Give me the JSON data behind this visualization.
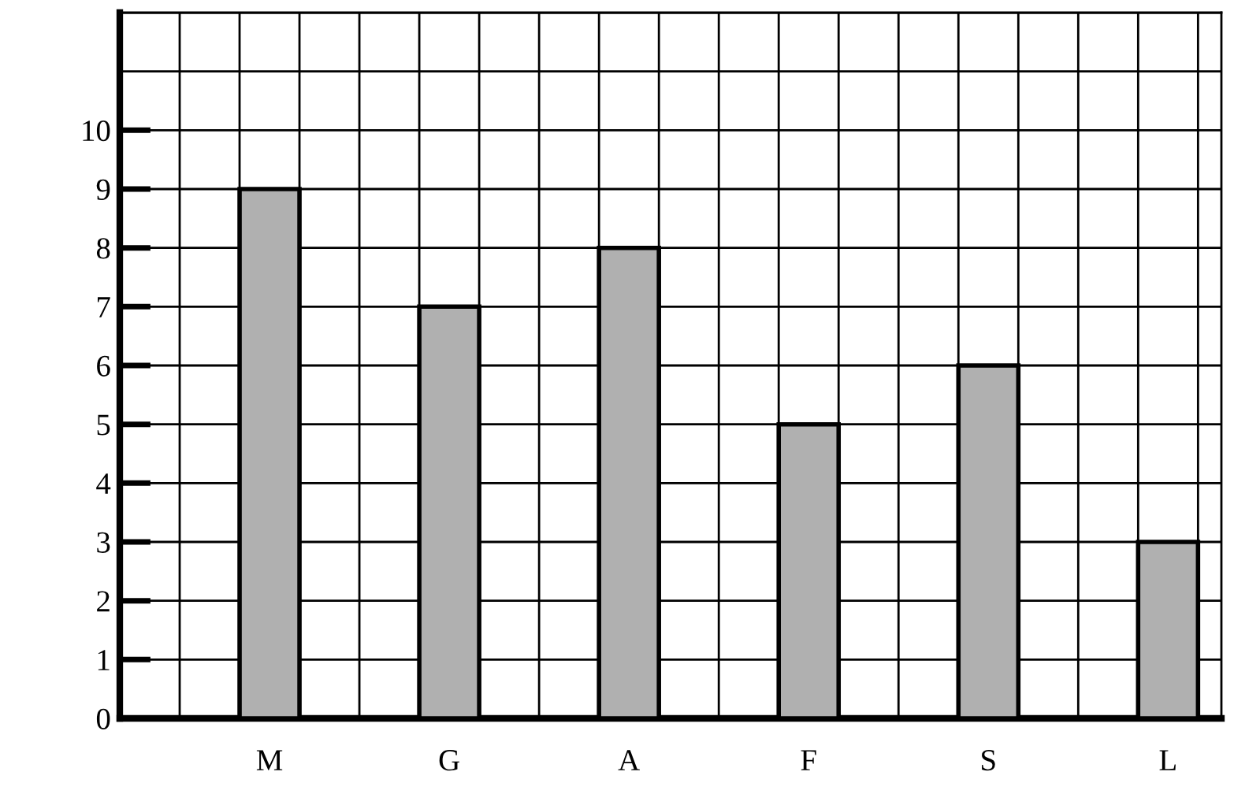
{
  "chart_data": {
    "type": "bar",
    "categories": [
      "M",
      "G",
      "A",
      "F",
      "S",
      "L"
    ],
    "values": [
      9,
      7,
      8,
      5,
      6,
      3
    ],
    "color": "#b0b0b0",
    "ylim": [
      0,
      12
    ],
    "yticks": [
      0,
      1,
      2,
      3,
      4,
      5,
      6,
      7,
      8,
      9,
      10
    ],
    "grid": true
  }
}
